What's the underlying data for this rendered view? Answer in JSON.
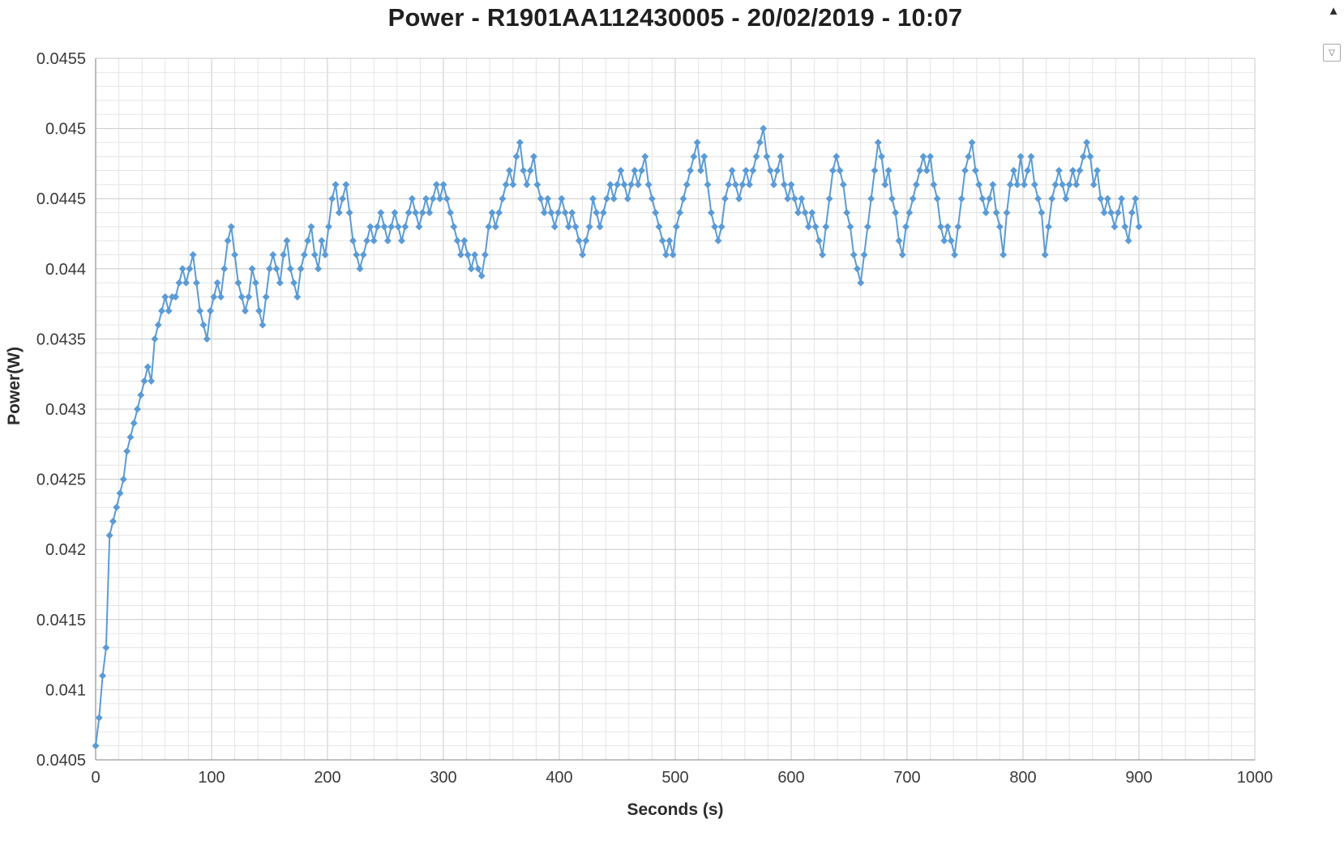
{
  "icons": {
    "scroll_up": "▲",
    "chart_filter": "▽"
  },
  "chart_style": {
    "line_color": "#5B9BD5",
    "marker_color": "#5B9BD5",
    "grid_major": "#C9C9C9",
    "grid_minor": "#E4E4E4",
    "axis_color": "#9B9B9B",
    "tick_text_color": "#3A3A3A",
    "title_color": "#1F1F1F",
    "background": "#FFFFFF"
  },
  "chart_data": {
    "type": "line",
    "title": "Power - R1901AA112430005 - 20/02/2019 - 10:07",
    "xlabel": "Seconds (s)",
    "ylabel": "Power(W)",
    "xlim": [
      0,
      1000
    ],
    "ylim": [
      0.0405,
      0.0455
    ],
    "x_ticks": [
      0,
      100,
      200,
      300,
      400,
      500,
      600,
      700,
      800,
      900,
      1000
    ],
    "x_tick_labels": [
      "0",
      "100",
      "200",
      "300",
      "400",
      "500",
      "600",
      "700",
      "800",
      "900",
      "1000"
    ],
    "y_ticks": [
      0.0405,
      0.041,
      0.0415,
      0.042,
      0.0425,
      0.043,
      0.0435,
      0.044,
      0.0445,
      0.045,
      0.0455
    ],
    "y_tick_labels": [
      "0.0405",
      "0.041",
      "0.0415",
      "0.042",
      "0.0425",
      "0.043",
      "0.0435",
      "0.044",
      "0.0445",
      "0.045",
      "0.0455"
    ],
    "x_major_step": 100,
    "x_minor_step": 20,
    "y_major_step": 0.0005,
    "y_minor_step": 0.0001,
    "grid": "major+minor",
    "legend": "none",
    "marker": "diamond",
    "x_start": 0,
    "x_step": 3,
    "values": [
      0.0406,
      0.0408,
      0.0411,
      0.0413,
      0.0421,
      0.0422,
      0.0423,
      0.0424,
      0.0425,
      0.0427,
      0.0428,
      0.0429,
      0.043,
      0.0431,
      0.0432,
      0.0433,
      0.0432,
      0.0435,
      0.0436,
      0.0437,
      0.0438,
      0.0437,
      0.0438,
      0.0438,
      0.0439,
      0.044,
      0.0439,
      0.044,
      0.0441,
      0.0439,
      0.0437,
      0.0436,
      0.0435,
      0.0437,
      0.0438,
      0.0439,
      0.0438,
      0.044,
      0.0442,
      0.0443,
      0.0441,
      0.0439,
      0.0438,
      0.0437,
      0.0438,
      0.044,
      0.0439,
      0.0437,
      0.0436,
      0.0438,
      0.044,
      0.0441,
      0.044,
      0.0439,
      0.0441,
      0.0442,
      0.044,
      0.0439,
      0.0438,
      0.044,
      0.0441,
      0.0442,
      0.0443,
      0.0441,
      0.044,
      0.0442,
      0.0441,
      0.0443,
      0.0445,
      0.0446,
      0.0444,
      0.0445,
      0.0446,
      0.0444,
      0.0442,
      0.0441,
      0.044,
      0.0441,
      0.0442,
      0.0443,
      0.0442,
      0.0443,
      0.0444,
      0.0443,
      0.0442,
      0.0443,
      0.0444,
      0.0443,
      0.0442,
      0.0443,
      0.0444,
      0.0445,
      0.0444,
      0.0443,
      0.0444,
      0.0445,
      0.0444,
      0.0445,
      0.0446,
      0.0445,
      0.0446,
      0.0445,
      0.0444,
      0.0443,
      0.0442,
      0.0441,
      0.0442,
      0.0441,
      0.044,
      0.0441,
      0.044,
      0.04395,
      0.0441,
      0.0443,
      0.0444,
      0.0443,
      0.0444,
      0.0445,
      0.0446,
      0.0447,
      0.0446,
      0.0448,
      0.0449,
      0.0447,
      0.0446,
      0.0447,
      0.0448,
      0.0446,
      0.0445,
      0.0444,
      0.0445,
      0.0444,
      0.0443,
      0.0444,
      0.0445,
      0.0444,
      0.0443,
      0.0444,
      0.0443,
      0.0442,
      0.0441,
      0.0442,
      0.0443,
      0.0445,
      0.0444,
      0.0443,
      0.0444,
      0.0445,
      0.0446,
      0.0445,
      0.0446,
      0.0447,
      0.0446,
      0.0445,
      0.0446,
      0.0447,
      0.0446,
      0.0447,
      0.0448,
      0.0446,
      0.0445,
      0.0444,
      0.0443,
      0.0442,
      0.0441,
      0.0442,
      0.0441,
      0.0443,
      0.0444,
      0.0445,
      0.0446,
      0.0447,
      0.0448,
      0.0449,
      0.0447,
      0.0448,
      0.0446,
      0.0444,
      0.0443,
      0.0442,
      0.0443,
      0.0445,
      0.0446,
      0.0447,
      0.0446,
      0.0445,
      0.0446,
      0.0447,
      0.0446,
      0.0447,
      0.0448,
      0.0449,
      0.045,
      0.0448,
      0.0447,
      0.0446,
      0.0447,
      0.0448,
      0.0446,
      0.0445,
      0.0446,
      0.0445,
      0.0444,
      0.0445,
      0.0444,
      0.0443,
      0.0444,
      0.0443,
      0.0442,
      0.0441,
      0.0443,
      0.0445,
      0.0447,
      0.0448,
      0.0447,
      0.0446,
      0.0444,
      0.0443,
      0.0441,
      0.044,
      0.0439,
      0.0441,
      0.0443,
      0.0445,
      0.0447,
      0.0449,
      0.0448,
      0.0446,
      0.0447,
      0.0445,
      0.0444,
      0.0442,
      0.0441,
      0.0443,
      0.0444,
      0.0445,
      0.0446,
      0.0447,
      0.0448,
      0.0447,
      0.0448,
      0.0446,
      0.0445,
      0.0443,
      0.0442,
      0.0443,
      0.0442,
      0.0441,
      0.0443,
      0.0445,
      0.0447,
      0.0448,
      0.0449,
      0.0447,
      0.0446,
      0.0445,
      0.0444,
      0.0445,
      0.0446,
      0.0444,
      0.0443,
      0.0441,
      0.0444,
      0.0446,
      0.0447,
      0.0446,
      0.0448,
      0.0446,
      0.0447,
      0.0448,
      0.0446,
      0.0445,
      0.0444,
      0.0441,
      0.0443,
      0.0445,
      0.0446,
      0.0447,
      0.0446,
      0.0445,
      0.0446,
      0.0447,
      0.0446,
      0.0447,
      0.0448,
      0.0449,
      0.0448,
      0.0446,
      0.0447,
      0.0445,
      0.0444,
      0.0445,
      0.0444,
      0.0443,
      0.0444,
      0.0445,
      0.0443,
      0.0442,
      0.0444,
      0.0445,
      0.0443
    ]
  }
}
